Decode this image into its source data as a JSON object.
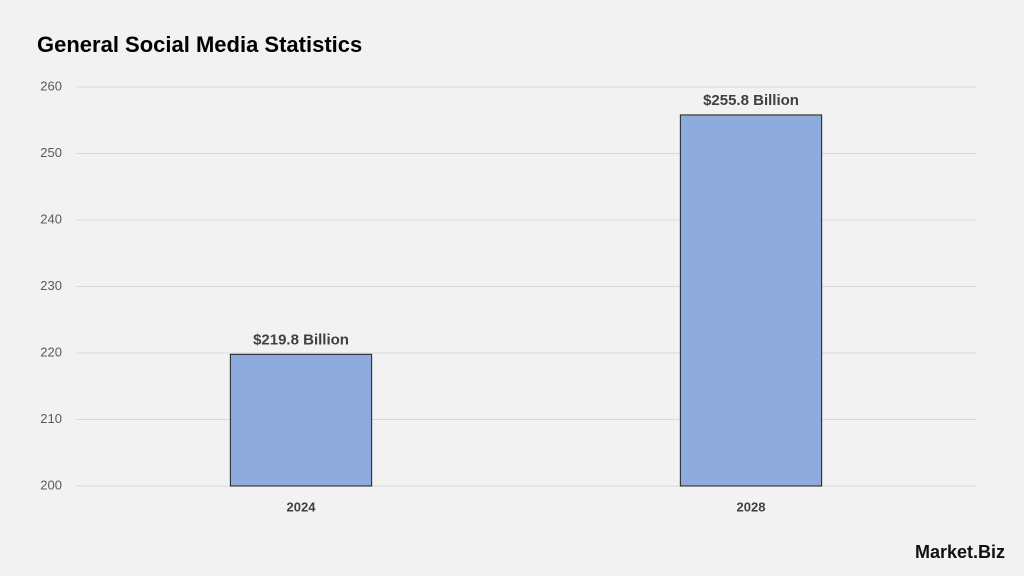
{
  "chart_data": {
    "type": "bar",
    "title": "General Social Media Statistics",
    "categories": [
      "2024",
      "2028"
    ],
    "values": [
      219.8,
      255.8
    ],
    "value_labels": [
      "$219.8 Billion",
      "$255.8 Billion"
    ],
    "color": "#8faadc",
    "ylim": [
      200,
      260
    ],
    "yticks": [
      200,
      210,
      220,
      230,
      240,
      250,
      260
    ],
    "grid": true,
    "watermark": "Market.Biz"
  }
}
